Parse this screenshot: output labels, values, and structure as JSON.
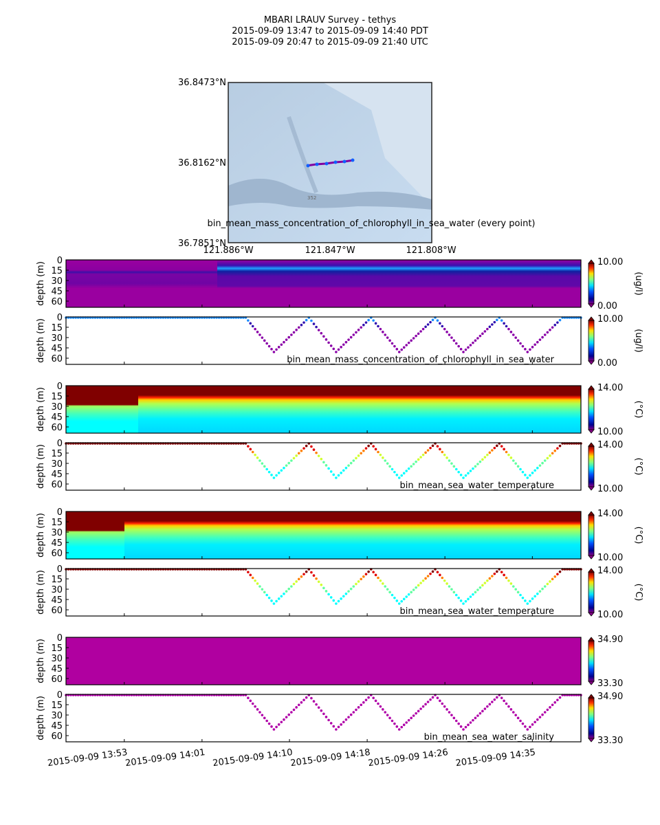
{
  "title": {
    "line1": "MBARI LRAUV Survey - tethys",
    "line2": "2015-09-09 13:47  to  2015-09-09 14:40 PDT",
    "line3": "2015-09-09 20:47  to  2015-09-09 21:40 UTC"
  },
  "map": {
    "lat_ticks": [
      "36.8473°N",
      "36.8162°N",
      "36.7851°N"
    ],
    "lon_ticks": [
      "121.886°W",
      "121.847°W",
      "121.808°W"
    ],
    "caption": "bin_mean_mass_concentration_of_chlorophyll_in_sea_water (every point)",
    "contour_label": "352"
  },
  "chart_data": {
    "type": "heatmap",
    "time_start": "2015-09-09 13:47",
    "time_end": "2015-09-09 14:40",
    "xtick_labels": [
      "2015-09-09 13:53",
      "2015-09-09 14:01",
      "2015-09-09 14:10",
      "2015-09-09 14:18",
      "2015-09-09 14:26",
      "2015-09-09 14:35"
    ],
    "xtick_minutes": [
      6,
      14,
      23,
      31,
      39,
      48
    ],
    "ylabel": "depth (m)",
    "ytick_labels": [
      "0",
      "15",
      "30",
      "45",
      "60"
    ],
    "ylim": [
      69,
      0
    ],
    "profile_track": {
      "minutes": [
        0,
        18.5,
        21.4,
        25,
        27.8,
        31.4,
        34.3,
        38,
        40.9,
        44.6,
        47.5,
        51.1,
        53
      ],
      "depth_m": [
        0,
        0,
        50,
        0,
        50,
        0,
        50,
        0,
        50,
        0,
        50,
        0,
        0
      ]
    },
    "panels": [
      {
        "kind": "section",
        "variable": "chlorophyll",
        "units": "(ug/l)",
        "cmin": "0.00",
        "cmax": "10.00"
      },
      {
        "kind": "profile",
        "variable": "chlorophyll",
        "units": "(ug/l)",
        "cmin": "0.00",
        "cmax": "10.00",
        "label": "bin_mean_mass_concentration_of_chlorophyll_in_sea_water"
      },
      {
        "kind": "section",
        "variable": "temperature",
        "units": "(°C)",
        "cmin": "10.00",
        "cmax": "14.00"
      },
      {
        "kind": "profile",
        "variable": "temperature",
        "units": "(°C)",
        "cmin": "10.00",
        "cmax": "14.00",
        "label": "bin_mean_sea_water_temperature"
      },
      {
        "kind": "section",
        "variable": "temperature",
        "units": "(°C)",
        "cmin": "10.00",
        "cmax": "14.00"
      },
      {
        "kind": "profile",
        "variable": "temperature",
        "units": "(°C)",
        "cmin": "10.00",
        "cmax": "14.00",
        "label": "bin_mean_sea_water_temperature"
      },
      {
        "kind": "section",
        "variable": "salinity",
        "units": "",
        "cmin": "33.30",
        "cmax": "34.90"
      },
      {
        "kind": "profile",
        "variable": "salinity",
        "units": "",
        "cmin": "33.30",
        "cmax": "34.90",
        "label": "bin_mean_sea_water_salinity"
      }
    ]
  }
}
